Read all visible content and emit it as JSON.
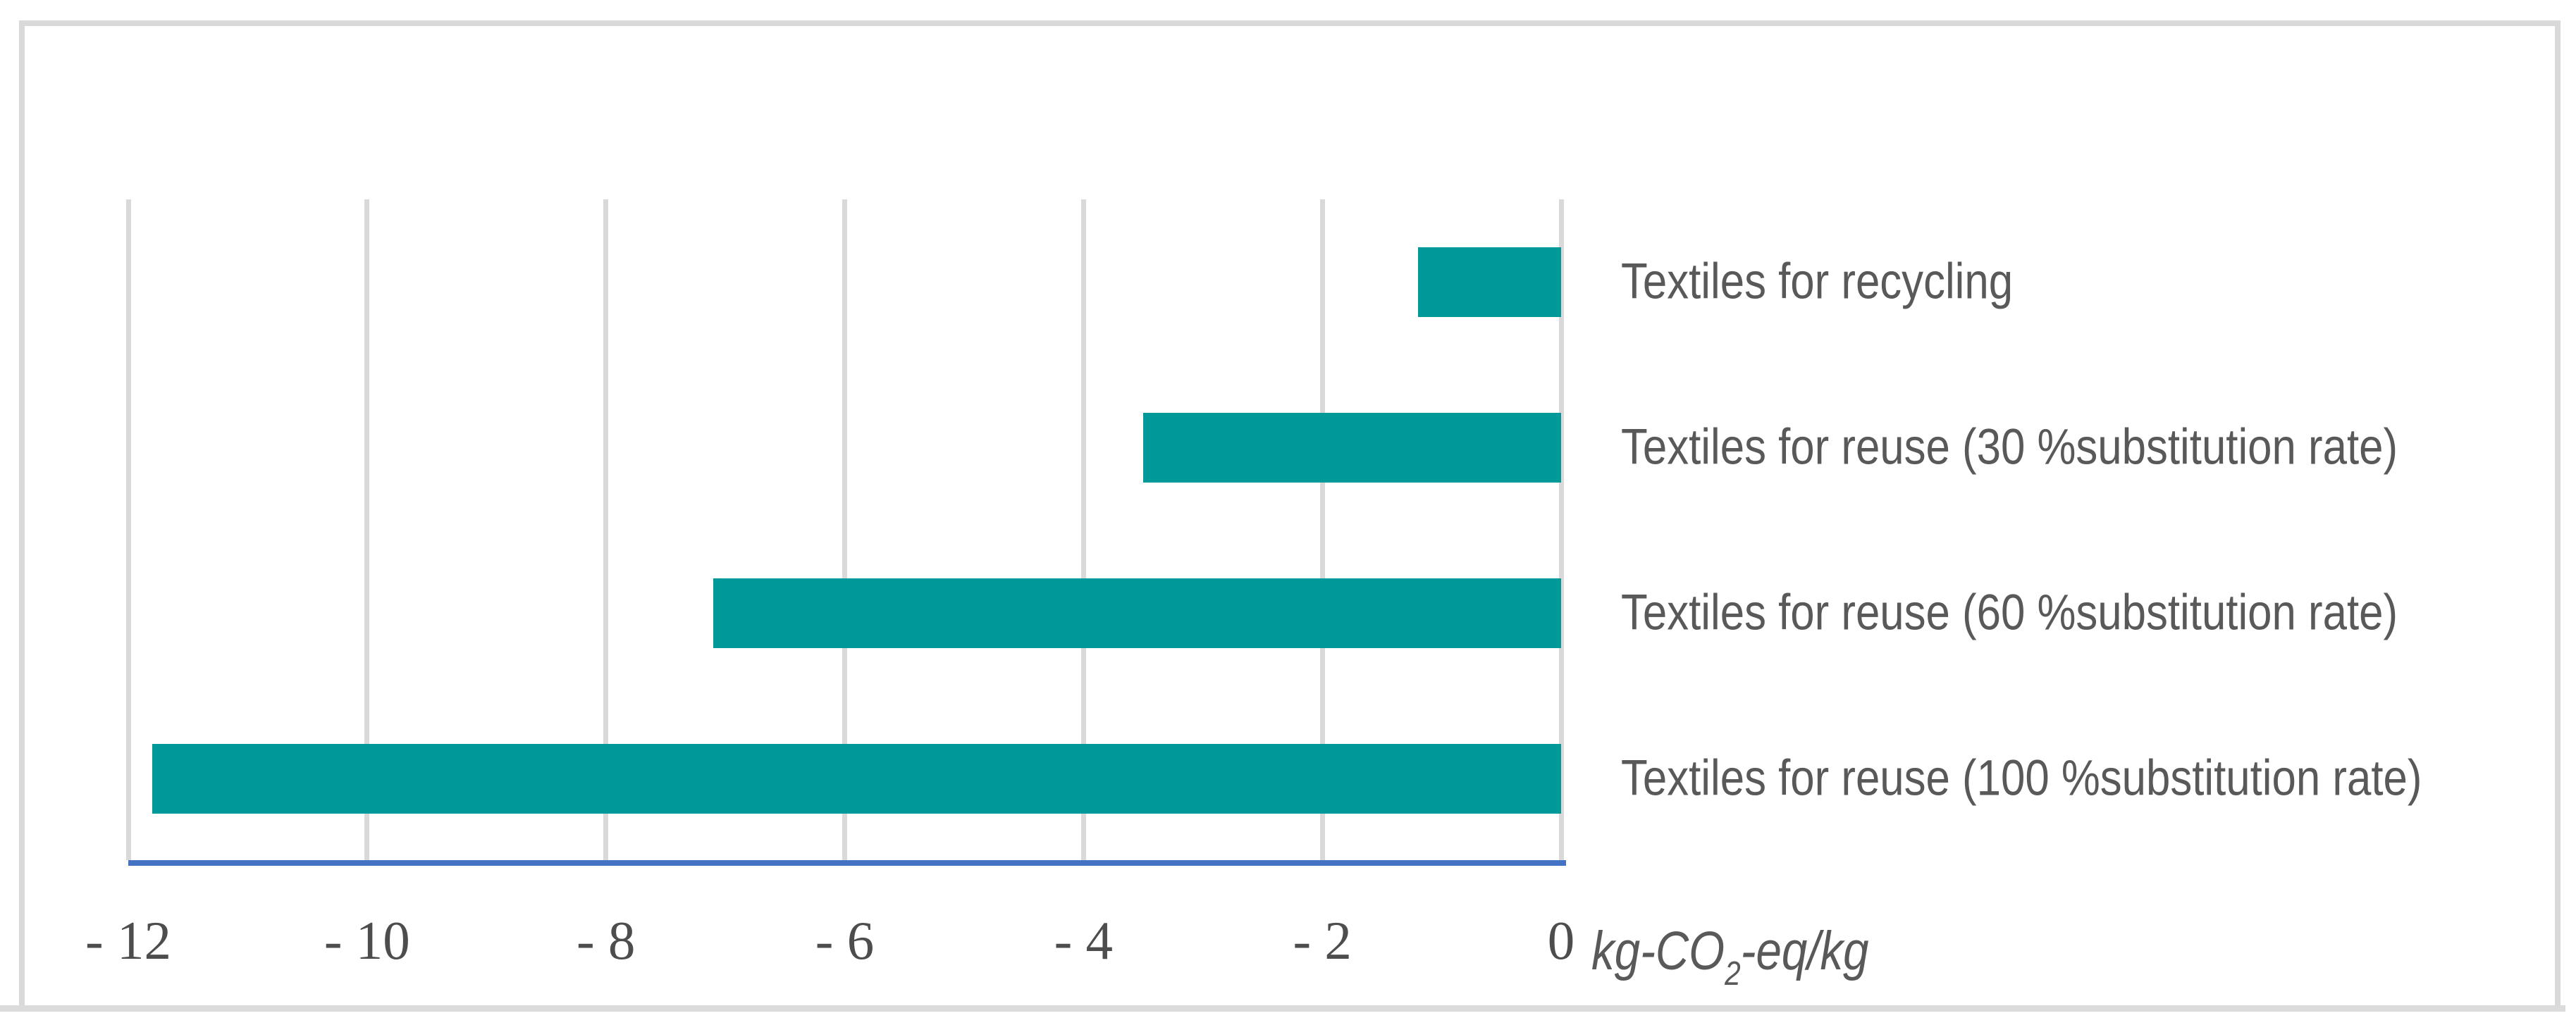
{
  "chart_data": {
    "type": "bar",
    "orientation": "horizontal",
    "categories": [
      "Textiles for recycling",
      "Textiles for reuse (30 %substitution rate)",
      "Textiles for reuse (60 %substitution rate)",
      "Textiles for reuse (100 %substitution rate)"
    ],
    "values": [
      -1.2,
      -3.5,
      -7.1,
      -11.8
    ],
    "xlim": [
      -12,
      0
    ],
    "x_ticks": [
      {
        "value": -12,
        "label": "- 12"
      },
      {
        "value": -10,
        "label": "- 10"
      },
      {
        "value": -8,
        "label": "- 8"
      },
      {
        "value": -6,
        "label": "- 6"
      },
      {
        "value": -4,
        "label": "- 4"
      },
      {
        "value": -2,
        "label": "- 2"
      },
      {
        "value": 0,
        "label": "0"
      }
    ],
    "xlabel": "kg-CO2-eq/kg",
    "xlabel_parts": {
      "pre": "kg-CO",
      "sub": "2",
      "post": "-eq/kg"
    },
    "grid": true,
    "legend": "none",
    "colors": {
      "bar": "#009999",
      "axis_line": "#4472C4",
      "gridline": "#D9D9D9",
      "frame_border": "#D9D9D9",
      "bottom_band": "#DBDBDB",
      "tick_text": "#4D4D4D",
      "label_text": "#595959",
      "background": "#FFFFFF"
    }
  }
}
